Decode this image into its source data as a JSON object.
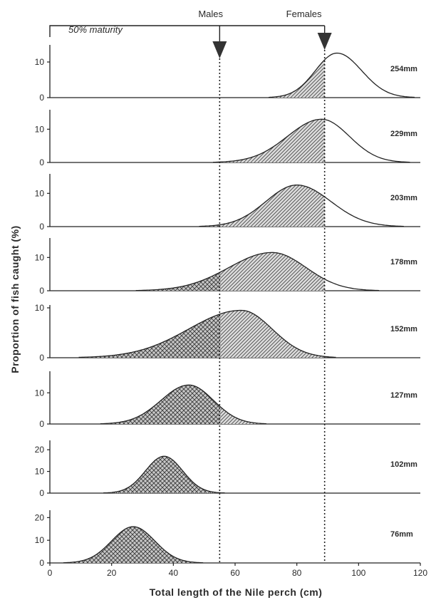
{
  "chart_data": {
    "type": "area",
    "xlabel": "Total length of the Nile perch (cm)",
    "ylabel": "Proportion of fish caught (%)",
    "xlim": [
      0,
      120
    ],
    "x_ticks": [
      "0",
      "20",
      "40",
      "60",
      "80",
      "100",
      "120"
    ],
    "annotations": {
      "maturity_label": "50% maturity",
      "males_label": "Males",
      "females_label": "Females",
      "males_maturity_cm": 55,
      "females_maturity_cm": 89
    },
    "panels": [
      {
        "mesh_label": "254mm",
        "ymax": 14,
        "y_ticks": [
          "0",
          "10"
        ],
        "y_tick_values": [
          0,
          10
        ],
        "mode": 93,
        "peak": 12.5,
        "sd_left": 7,
        "sd_right": 8
      },
      {
        "mesh_label": "229mm",
        "ymax": 15,
        "y_ticks": [
          "0",
          "10"
        ],
        "y_tick_values": [
          0,
          10
        ],
        "mode": 88,
        "peak": 13,
        "sd_left": 11,
        "sd_right": 9
      },
      {
        "mesh_label": "203mm",
        "ymax": 15,
        "y_ticks": [
          "0",
          "10"
        ],
        "y_tick_values": [
          0,
          10
        ],
        "mode": 80,
        "peak": 12.5,
        "sd_left": 10,
        "sd_right": 11
      },
      {
        "mesh_label": "178mm",
        "ymax": 15,
        "y_ticks": [
          "0",
          "10"
        ],
        "y_tick_values": [
          0,
          10
        ],
        "mode": 72,
        "peak": 11.5,
        "sd_left": 14,
        "sd_right": 11
      },
      {
        "mesh_label": "152mm",
        "ymax": 10,
        "y_ticks": [
          "0",
          "10"
        ],
        "y_tick_values": [
          0,
          10
        ],
        "mode": 62,
        "peak": 9.5,
        "sd_left": 17,
        "sd_right": 10
      },
      {
        "mesh_label": "127mm",
        "ymax": 16,
        "y_ticks": [
          "0",
          "10"
        ],
        "y_tick_values": [
          0,
          10
        ],
        "mode": 45,
        "peak": 12.5,
        "sd_left": 9,
        "sd_right": 8
      },
      {
        "mesh_label": "102mm",
        "ymax": 23,
        "y_ticks": [
          "0",
          "10",
          "20"
        ],
        "y_tick_values": [
          0,
          10,
          20
        ],
        "mode": 37,
        "peak": 17,
        "sd_left": 6,
        "sd_right": 6
      },
      {
        "mesh_label": "76mm",
        "ymax": 22,
        "y_ticks": [
          "0",
          "10",
          "20"
        ],
        "y_tick_values": [
          0,
          10,
          20
        ],
        "mode": 27,
        "peak": 16,
        "sd_left": 7,
        "sd_right": 7
      }
    ]
  }
}
